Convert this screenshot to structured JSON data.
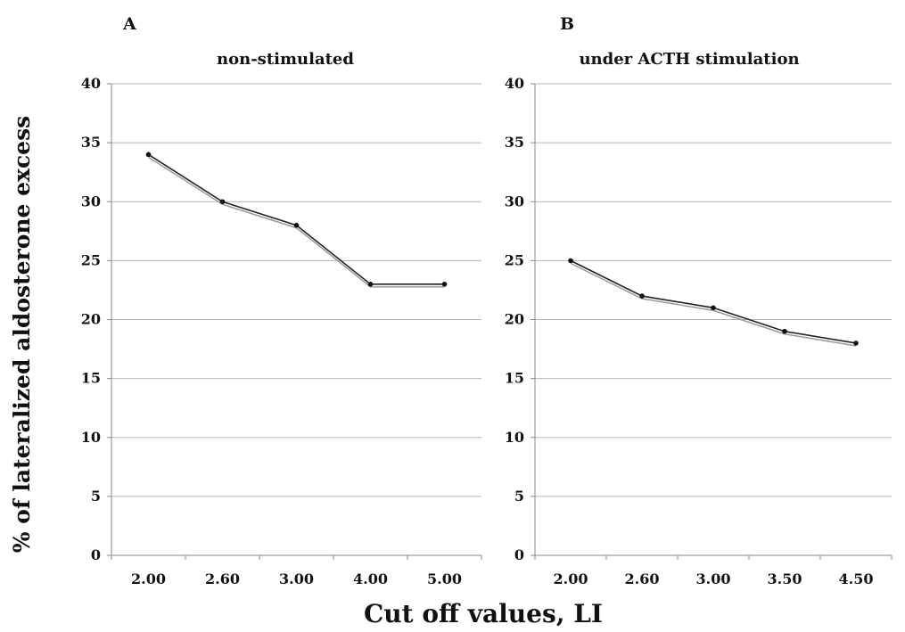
{
  "figure": {
    "ylabel": "% of lateralized aldosterone excess",
    "xlabel": "Cut off values, LI"
  },
  "chart_data": [
    {
      "type": "line",
      "panel": "A",
      "title": "non-stimulated",
      "categories": [
        "2.00",
        "2.60",
        "3.00",
        "4.00",
        "5.00"
      ],
      "values": [
        34,
        30,
        28,
        23,
        23
      ],
      "ylim": [
        0,
        40
      ],
      "yticks": [
        "0",
        "5",
        "10",
        "15",
        "20",
        "25",
        "30",
        "35",
        "40"
      ],
      "grid": true,
      "line_color": "#222222"
    },
    {
      "type": "line",
      "panel": "B",
      "title": "under ACTH stimulation",
      "categories": [
        "2.00",
        "2.60",
        "3.00",
        "3.50",
        "4.50"
      ],
      "values": [
        25,
        22,
        21,
        19,
        18
      ],
      "ylim": [
        0,
        40
      ],
      "yticks": [
        "0",
        "5",
        "10",
        "15",
        "20",
        "25",
        "30",
        "35",
        "40"
      ],
      "grid": true,
      "line_color": "#222222"
    }
  ]
}
